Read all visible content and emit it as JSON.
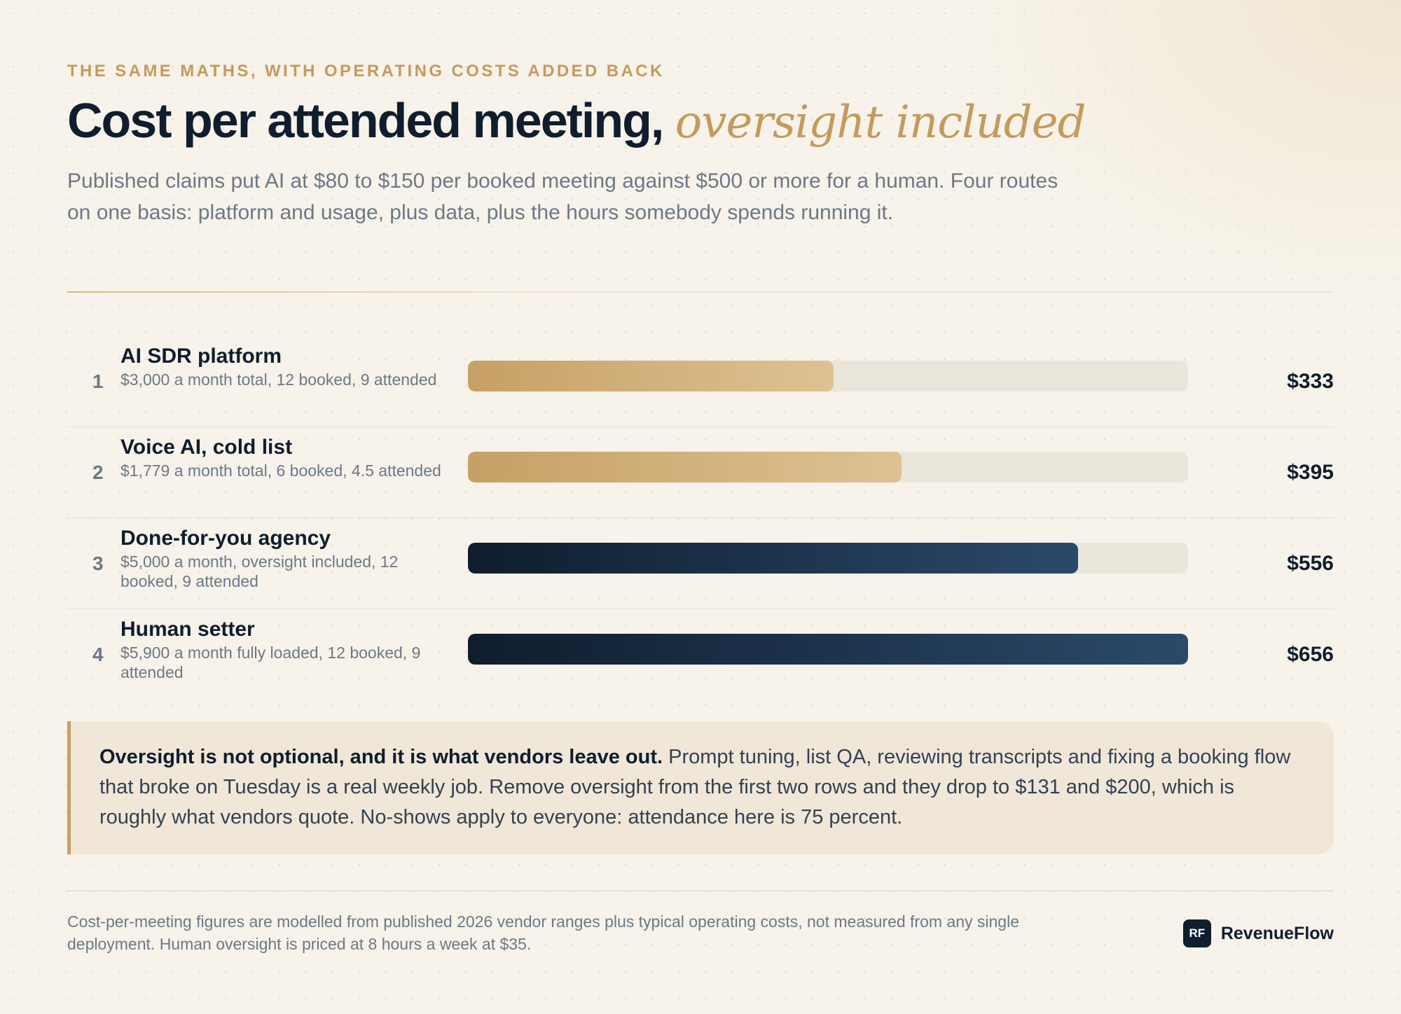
{
  "header": {
    "eyebrow": "THE SAME MATHS, WITH OPERATING COSTS ADDED BACK",
    "title_main": "Cost per attended meeting,",
    "title_accent": "oversight included",
    "subtitle": "Published claims put AI at $80 to $150 per booked meeting against $500 or more for a human. Four routes on one basis: platform and usage, plus data, plus the hours somebody spends running it."
  },
  "chart_data": {
    "type": "bar",
    "orientation": "horizontal",
    "xlim": [
      0,
      656
    ],
    "categories": [
      "AI SDR platform",
      "Voice AI, cold list",
      "Done-for-you agency",
      "Human setter"
    ],
    "ranks": [
      "1",
      "2",
      "3",
      "4"
    ],
    "descriptions": [
      "$3,000 a month total, 12 booked, 9 attended",
      "$1,779 a month total, 6 booked, 4.5 attended",
      "$5,000 a month, oversight included, 12 booked, 9 attended",
      "$5,900 a month fully loaded, 12 booked, 9 attended"
    ],
    "values": [
      333,
      395,
      556,
      656
    ],
    "value_labels": [
      "$333",
      "$395",
      "$556",
      "$656"
    ],
    "bar_styles": [
      "gold",
      "gold",
      "navy",
      "navy"
    ],
    "colors": {
      "gold_start": "#c6a065",
      "gold_end": "#dec293",
      "navy_start": "#0f1d2e",
      "navy_end": "#2b4a6a",
      "track": "#ebe6dc"
    }
  },
  "callout": {
    "lead": "Oversight is not optional, and it is what vendors leave out.",
    "body": " Prompt tuning, list QA, reviewing transcripts and fixing a booking flow that broke on Tuesday is a real weekly job. Remove oversight from the first two rows and they drop to $131 and $200, which is roughly what vendors quote. No-shows apply to everyone: attendance here is 75 percent."
  },
  "footer": {
    "note": "Cost-per-meeting figures are modelled from published 2026 vendor ranges plus typical operating costs, not measured from any single deployment. Human oversight is priced at 8 hours a week at $35.",
    "brand_mark": "RF",
    "brand_name": "RevenueFlow"
  }
}
